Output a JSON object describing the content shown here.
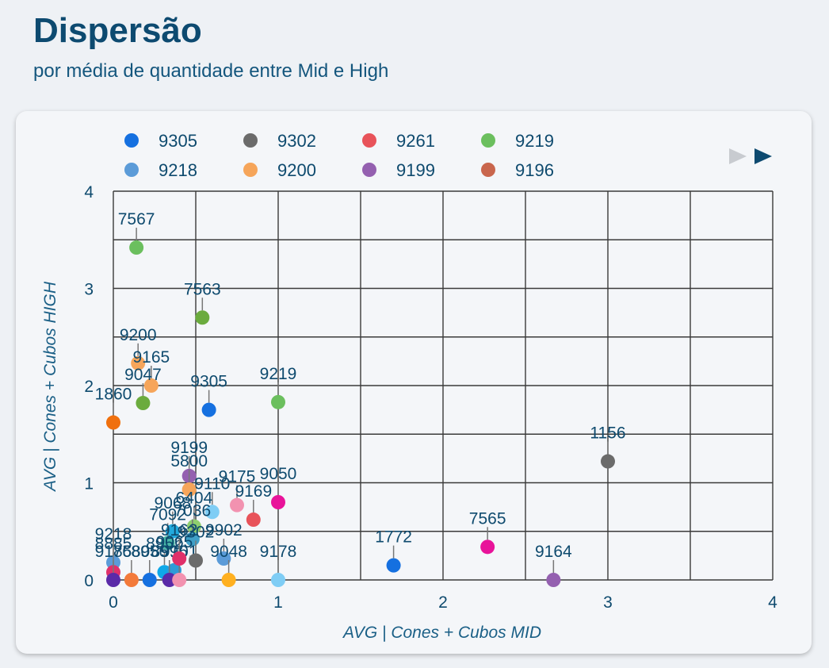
{
  "header": {
    "title": "Dispersão",
    "subtitle": "por média de quantidade entre Mid e High"
  },
  "legend": {
    "items": [
      {
        "label": "9305",
        "color": "#1570e0"
      },
      {
        "label": "9302",
        "color": "#6b6b6b"
      },
      {
        "label": "9261",
        "color": "#e8535a"
      },
      {
        "label": "9219",
        "color": "#6bbf5e"
      },
      {
        "label": "9218",
        "color": "#5b9bd8"
      },
      {
        "label": "9200",
        "color": "#f6a55a"
      },
      {
        "label": "9199",
        "color": "#9460b0"
      },
      {
        "label": "9196",
        "color": "#c9664d"
      }
    ],
    "pager_prev_icon": "triangle-left-icon",
    "pager_next_icon": "triangle-right-icon"
  },
  "chart_data": {
    "type": "scatter",
    "xlabel": "AVG | Cones + Cubos MID",
    "ylabel": "AVG | Cones + Cubos HIGH",
    "xlim": [
      0,
      4
    ],
    "ylim": [
      0,
      4
    ],
    "xticks": [
      "0",
      "1",
      "2",
      "3",
      "4"
    ],
    "yticks": [
      "0",
      "1",
      "2",
      "3",
      "4"
    ],
    "grid": true,
    "legend_position": "top",
    "points": [
      {
        "label": "7567",
        "x": 0.14,
        "y": 3.42,
        "color": "#6bbf5e"
      },
      {
        "label": "7563",
        "x": 0.54,
        "y": 2.7,
        "color": "#6bab3e"
      },
      {
        "label": "9200",
        "x": 0.15,
        "y": 2.23,
        "color": "#f6a55a"
      },
      {
        "label": "9165",
        "x": 0.23,
        "y": 2.0,
        "color": "#f6a55a"
      },
      {
        "label": "9047",
        "x": 0.18,
        "y": 1.82,
        "color": "#6bab3e"
      },
      {
        "label": "1860",
        "x": 0.0,
        "y": 1.62,
        "color": "#f0700e"
      },
      {
        "label": "9305",
        "x": 0.58,
        "y": 1.75,
        "color": "#1570e0"
      },
      {
        "label": "9219",
        "x": 1.0,
        "y": 1.83,
        "color": "#6bbf5e"
      },
      {
        "label": "1156",
        "x": 3.0,
        "y": 1.22,
        "color": "#6b6b6b"
      },
      {
        "label": "9199",
        "x": 0.46,
        "y": 1.07,
        "color": "#9460b0"
      },
      {
        "label": "5800",
        "x": 0.46,
        "y": 0.93,
        "color": "#f6a55a"
      },
      {
        "label": "9110",
        "x": 0.6,
        "y": 0.7,
        "color": "#7fcdf5"
      },
      {
        "label": "9175",
        "x": 0.75,
        "y": 0.77,
        "color": "#f292b0"
      },
      {
        "label": "9050",
        "x": 1.0,
        "y": 0.8,
        "color": "#e8139a"
      },
      {
        "label": "9169",
        "x": 0.85,
        "y": 0.62,
        "color": "#e8535a"
      },
      {
        "label": "9068",
        "x": 0.36,
        "y": 0.5,
        "color": "#22aadd"
      },
      {
        "label": "6404",
        "x": 0.49,
        "y": 0.55,
        "color": "#8fcf6e"
      },
      {
        "label": "7092",
        "x": 0.33,
        "y": 0.38,
        "color": "#49b8a8"
      },
      {
        "label": "7036",
        "x": 0.48,
        "y": 0.42,
        "color": "#40a0c8"
      },
      {
        "label": "9902",
        "x": 0.67,
        "y": 0.22,
        "color": "#5b9bd8"
      },
      {
        "label": "9048",
        "x": 0.7,
        "y": 0.0,
        "color": "#ffb020"
      },
      {
        "label": "9178",
        "x": 1.0,
        "y": 0.0,
        "color": "#7fcdf5"
      },
      {
        "label": "1772",
        "x": 1.7,
        "y": 0.15,
        "color": "#1570e0"
      },
      {
        "label": "7565",
        "x": 2.27,
        "y": 0.34,
        "color": "#e8139a"
      },
      {
        "label": "9164",
        "x": 2.67,
        "y": 0.0,
        "color": "#9460b0"
      },
      {
        "label": "9218",
        "x": 0.0,
        "y": 0.18,
        "color": "#5b9bd8"
      },
      {
        "label": "8885",
        "x": 0.0,
        "y": 0.08,
        "color": "#e0306a"
      },
      {
        "label": "9185",
        "x": 0.0,
        "y": 0.0,
        "color": "#5a2aa8"
      },
      {
        "label": "7680",
        "x": 0.11,
        "y": 0.0,
        "color": "#f37a3a"
      },
      {
        "label": "8956",
        "x": 0.22,
        "y": 0.0,
        "color": "#1570e0"
      },
      {
        "label": "8952",
        "x": 0.31,
        "y": 0.08,
        "color": "#0fa8e8"
      },
      {
        "label": "9065",
        "x": 0.37,
        "y": 0.1,
        "color": "#2f9bd8"
      },
      {
        "label": "8996",
        "x": 0.34,
        "y": 0.0,
        "color": "#5a2aa8"
      },
      {
        "label": "9101",
        "x": 0.4,
        "y": 0.0,
        "color": "#f292b0"
      },
      {
        "label": "9162",
        "x": 0.4,
        "y": 0.22,
        "color": "#e0306a"
      },
      {
        "label": "9302",
        "x": 0.5,
        "y": 0.2,
        "color": "#6b6b6b"
      }
    ]
  }
}
